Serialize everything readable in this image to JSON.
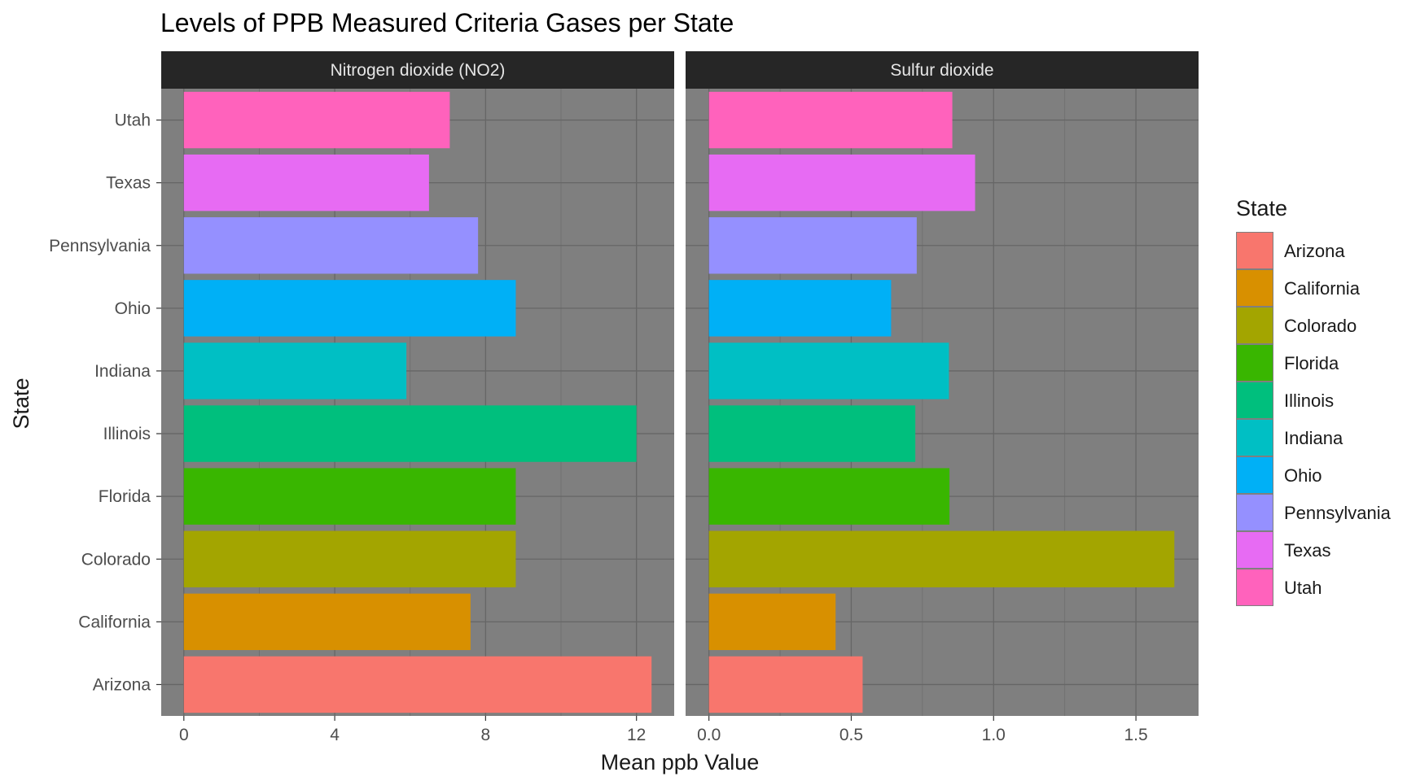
{
  "chart_data": {
    "type": "bar",
    "orientation": "horizontal",
    "title": "Levels of PPB Measured Criteria Gases per State",
    "xlabel": "Mean ppb Value",
    "ylabel": "State",
    "grid": true,
    "legend_position": "right",
    "legend_title": "State",
    "categories": [
      "Arizona",
      "California",
      "Colorado",
      "Florida",
      "Illinois",
      "Indiana",
      "Ohio",
      "Pennsylvania",
      "Texas",
      "Utah"
    ],
    "colors": {
      "Arizona": "#F8766D",
      "California": "#D89000",
      "Colorado": "#A3A500",
      "Florida": "#39B600",
      "Illinois": "#00BF7D",
      "Indiana": "#00BFC4",
      "Ohio": "#00B0F6",
      "Pennsylvania": "#9590FF",
      "Texas": "#E76BF3",
      "Utah": "#FF62BC"
    },
    "panel_background": "#7f7f7f",
    "strip_background": "#262626",
    "panels": [
      {
        "name": "Nitrogen dioxide (NO2)",
        "values": [
          12.4,
          7.6,
          8.8,
          8.8,
          12.0,
          5.9,
          8.8,
          7.8,
          6.5,
          7.05
        ],
        "xlim": [
          -0.6,
          13.0
        ],
        "xticks": [
          0,
          4,
          8,
          12
        ],
        "xtick_labels": [
          "0",
          "4",
          "8",
          "12"
        ]
      },
      {
        "name": "Sulfur dioxide",
        "values": [
          0.54,
          0.445,
          1.635,
          0.845,
          0.725,
          0.843,
          0.64,
          0.73,
          0.935,
          0.855
        ],
        "xlim": [
          -0.082,
          1.72
        ],
        "xticks": [
          0.0,
          0.5,
          1.0,
          1.5
        ],
        "xtick_labels": [
          "0.0",
          "0.5",
          "1.0",
          "1.5"
        ]
      }
    ]
  }
}
